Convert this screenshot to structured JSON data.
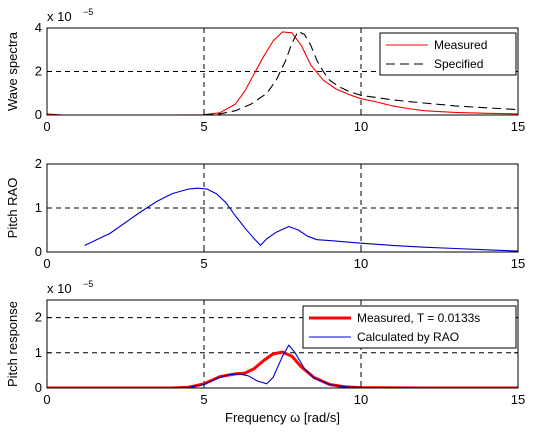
{
  "chart_data": [
    {
      "type": "line",
      "xlabel": "",
      "ylabel": "Wave spectra",
      "exponent_label": "x 10",
      "exponent_power": "−5",
      "xlim": [
        0,
        15
      ],
      "ylim": [
        0,
        4
      ],
      "xticks": [
        0,
        5,
        10,
        15
      ],
      "yticks": [
        0,
        2,
        4
      ],
      "grid": true,
      "legend_position": "top-right",
      "series": [
        {
          "name": "Measured",
          "color": "#ff0000",
          "style": "solid",
          "x": [
            0,
            0.5,
            1,
            2,
            3,
            4,
            5,
            5.5,
            6,
            6.3,
            6.6,
            6.9,
            7.2,
            7.5,
            7.8,
            8.1,
            8.4,
            8.8,
            9.2,
            9.6,
            10,
            10.5,
            11,
            11.5,
            12,
            13,
            14,
            15
          ],
          "y": [
            0.05,
            0,
            0,
            0,
            0,
            0,
            0.01,
            0.1,
            0.5,
            1.1,
            1.9,
            2.7,
            3.4,
            3.82,
            3.78,
            3.2,
            2.3,
            1.6,
            1.2,
            0.95,
            0.75,
            0.6,
            0.42,
            0.3,
            0.2,
            0.12,
            0.08,
            0.05
          ]
        },
        {
          "name": "Specified",
          "color": "#000000",
          "style": "dashed",
          "x": [
            5,
            5.5,
            6,
            6.5,
            7,
            7.3,
            7.6,
            7.8,
            8.0,
            8.2,
            8.4,
            8.6,
            8.8,
            9.0,
            9.3,
            9.6,
            10,
            10.5,
            11,
            11.5,
            12,
            13,
            14,
            15
          ],
          "y": [
            0.02,
            0.05,
            0.2,
            0.5,
            1.0,
            1.6,
            2.5,
            3.3,
            3.85,
            3.7,
            3.2,
            2.5,
            2.0,
            1.6,
            1.3,
            1.1,
            0.9,
            0.8,
            0.7,
            0.62,
            0.55,
            0.42,
            0.33,
            0.25
          ]
        }
      ]
    },
    {
      "type": "line",
      "xlabel": "",
      "ylabel": "Pitch RAO",
      "xlim": [
        0,
        15
      ],
      "ylim": [
        0,
        2
      ],
      "xticks": [
        0,
        5,
        10,
        15
      ],
      "yticks": [
        0,
        1,
        2
      ],
      "grid": true,
      "series": [
        {
          "color": "#0000cc",
          "style": "solid",
          "x": [
            1.2,
            2,
            2.5,
            3,
            3.5,
            4,
            4.5,
            4.8,
            5.1,
            5.4,
            5.7,
            6.0,
            6.3,
            6.6,
            6.8,
            7.0,
            7.3,
            7.7,
            8.0,
            8.3,
            8.6,
            9,
            10,
            11,
            12,
            13,
            14,
            15
          ],
          "y": [
            0.15,
            0.42,
            0.67,
            0.92,
            1.15,
            1.33,
            1.43,
            1.45,
            1.43,
            1.32,
            1.12,
            0.82,
            0.55,
            0.3,
            0.15,
            0.3,
            0.45,
            0.58,
            0.5,
            0.36,
            0.28,
            0.26,
            0.2,
            0.15,
            0.11,
            0.08,
            0.05,
            0.02
          ]
        }
      ]
    },
    {
      "type": "line",
      "xlabel": "Frequency ω [rad/s]",
      "ylabel": "Pitch response",
      "exponent_label": "x 10",
      "exponent_power": "−5",
      "xlim": [
        0,
        15
      ],
      "ylim": [
        0,
        2.5
      ],
      "xticks": [
        0,
        5,
        10,
        15
      ],
      "yticks": [
        0,
        1,
        2
      ],
      "grid": true,
      "legend_position": "top-right",
      "series": [
        {
          "name": "Measured, T = 0.0133s",
          "color": "#ff0000",
          "style": "solid-thick",
          "x": [
            0,
            4,
            4.5,
            5,
            5.5,
            6,
            6.3,
            6.6,
            6.9,
            7.2,
            7.5,
            7.8,
            8.1,
            8.5,
            9,
            9.5,
            10,
            12,
            15
          ],
          "y": [
            0,
            0,
            0.02,
            0.12,
            0.32,
            0.4,
            0.42,
            0.55,
            0.78,
            0.97,
            1.02,
            0.9,
            0.6,
            0.3,
            0.1,
            0.03,
            0.01,
            0,
            0
          ]
        },
        {
          "name": "Calculated by RAO",
          "color": "#0000cc",
          "style": "solid",
          "x": [
            0,
            4,
            4.5,
            5,
            5.5,
            5.8,
            6.1,
            6.4,
            6.7,
            7.0,
            7.2,
            7.5,
            7.7,
            7.9,
            8.2,
            8.5,
            9,
            9.5,
            10,
            12,
            15
          ],
          "y": [
            0,
            0,
            0.02,
            0.1,
            0.3,
            0.38,
            0.4,
            0.35,
            0.2,
            0.12,
            0.3,
            0.9,
            1.22,
            1.0,
            0.55,
            0.28,
            0.1,
            0.03,
            0.01,
            0,
            0
          ]
        }
      ]
    }
  ]
}
